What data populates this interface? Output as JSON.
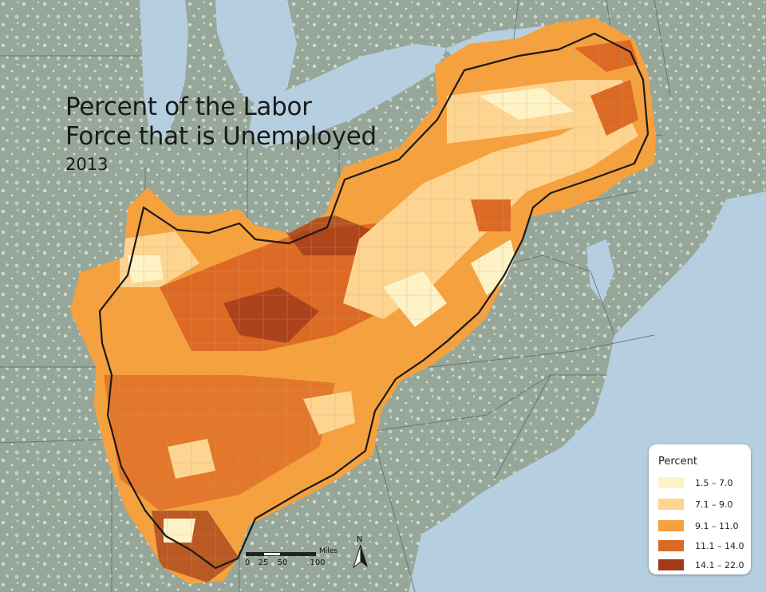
{
  "title": {
    "line1": "Percent of the Labor",
    "line2": "Force that is Unemployed",
    "year": "2013"
  },
  "legend": {
    "title": "Percent",
    "classes": [
      {
        "label": "1.5 – 7.0",
        "color": "#fdf3c6"
      },
      {
        "label": "7.1 – 9.0",
        "color": "#fdd490"
      },
      {
        "label": "9.1 – 11.0",
        "color": "#f5a13e"
      },
      {
        "label": "11.1 – 14.0",
        "color": "#dc6a25"
      },
      {
        "label": "14.1 – 22.0",
        "color": "#a03a1a"
      }
    ]
  },
  "scale_bar": {
    "unit": "Miles",
    "ticks": [
      "0",
      "25",
      "50",
      "100"
    ]
  },
  "north_arrow": {
    "label": "N"
  },
  "colors": {
    "water": "#b5cfe0",
    "land": "#96a79a",
    "urban": "#dde3dd",
    "boundary": "#1a1a1a"
  }
}
